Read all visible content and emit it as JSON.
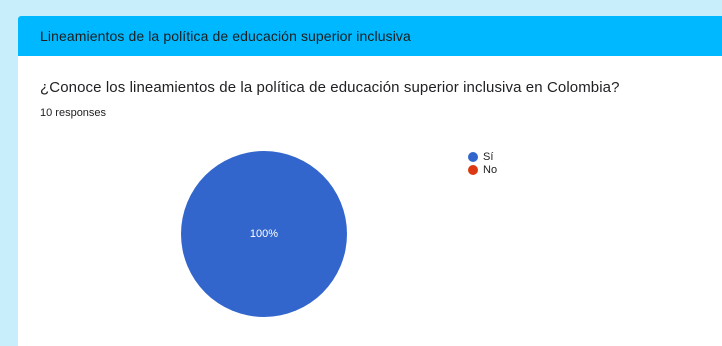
{
  "section": {
    "title": "Lineamientos de la política de educación superior inclusiva"
  },
  "question": {
    "text": "¿Conoce los lineamientos de la política de educación superior inclusiva en Colombia?",
    "responses": "10 responses"
  },
  "colors": {
    "header": "#00b8ff",
    "background": "#c9eefb",
    "yes": "#3366cc",
    "no": "#dc3912"
  },
  "chart_data": {
    "type": "pie",
    "categories": [
      "Sí",
      "No"
    ],
    "values": [
      100,
      0
    ],
    "slice_labels": [
      "100%"
    ],
    "legend_position": "right"
  }
}
